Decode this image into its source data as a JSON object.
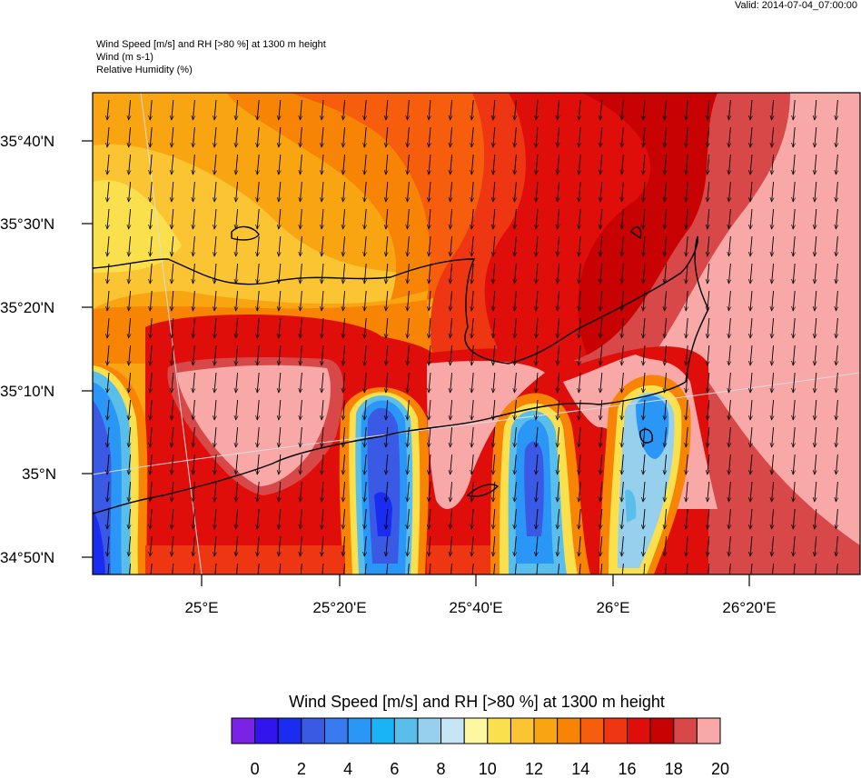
{
  "valid_time": "Valid: 2014-07-04_07:00:00",
  "titles": {
    "line1": "Wind Speed [m/s] and RH [>80 %] at 1300 m height",
    "line2": "Wind   (m s-1)",
    "line3": "Relative Humidity   (%)"
  },
  "axes": {
    "lat_labels": [
      "35°40'N",
      "35°30'N",
      "35°20'N",
      "35°10'N",
      "35°N",
      "34°50'N"
    ],
    "lon_labels": [
      "25°E",
      "25°20'E",
      "25°40'E",
      "26°E",
      "26°20'E"
    ]
  },
  "colorbar": {
    "title": "Wind Speed [m/s] and RH [>80 %] at 1300 m height",
    "labels": [
      "0",
      "2",
      "4",
      "6",
      "8",
      "10",
      "12",
      "14",
      "16",
      "18",
      "20"
    ],
    "colors": [
      "#7a22e6",
      "#3214ee",
      "#1a2cf2",
      "#3a5ae6",
      "#3a7af0",
      "#2a96f6",
      "#18b4f6",
      "#5abeea",
      "#96d0ec",
      "#c6e6f6",
      "#fcf7a0",
      "#fae04c",
      "#fbc432",
      "#f9a512",
      "#f88406",
      "#f65e0e",
      "#ee3612",
      "#e00e0a",
      "#c80202",
      "#d94848",
      "#f9a8a8"
    ]
  },
  "wind": {
    "direction": "southward arrows"
  }
}
